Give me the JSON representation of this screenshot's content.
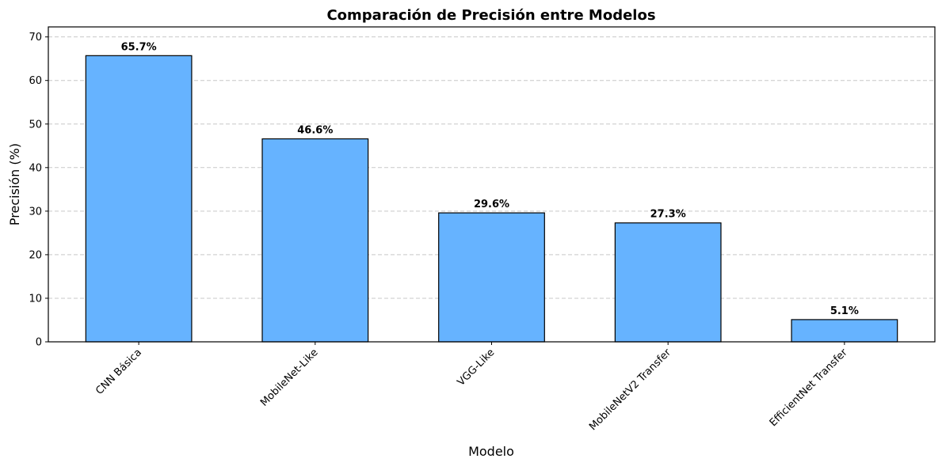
{
  "chart_data": {
    "type": "bar",
    "title": "Comparación de Precisión entre Modelos",
    "xlabel": "Modelo",
    "ylabel": "Precisión (%)",
    "categories": [
      "CNN Básica",
      "MobileNet-Like",
      "VGG-Like",
      "MobileNetV2 Transfer",
      "EfficientNet Transfer"
    ],
    "values": [
      65.7,
      46.6,
      29.6,
      27.3,
      5.1
    ],
    "data_labels": [
      "65.7%",
      "46.6%",
      "29.6%",
      "27.3%",
      "5.1%"
    ],
    "ylim": [
      0,
      72.3
    ],
    "yticks": [
      0,
      10,
      20,
      30,
      40,
      50,
      60,
      70
    ],
    "grid": "y, dashed",
    "bar_color": "#66b3ff",
    "bar_edge_color": "#000000"
  }
}
